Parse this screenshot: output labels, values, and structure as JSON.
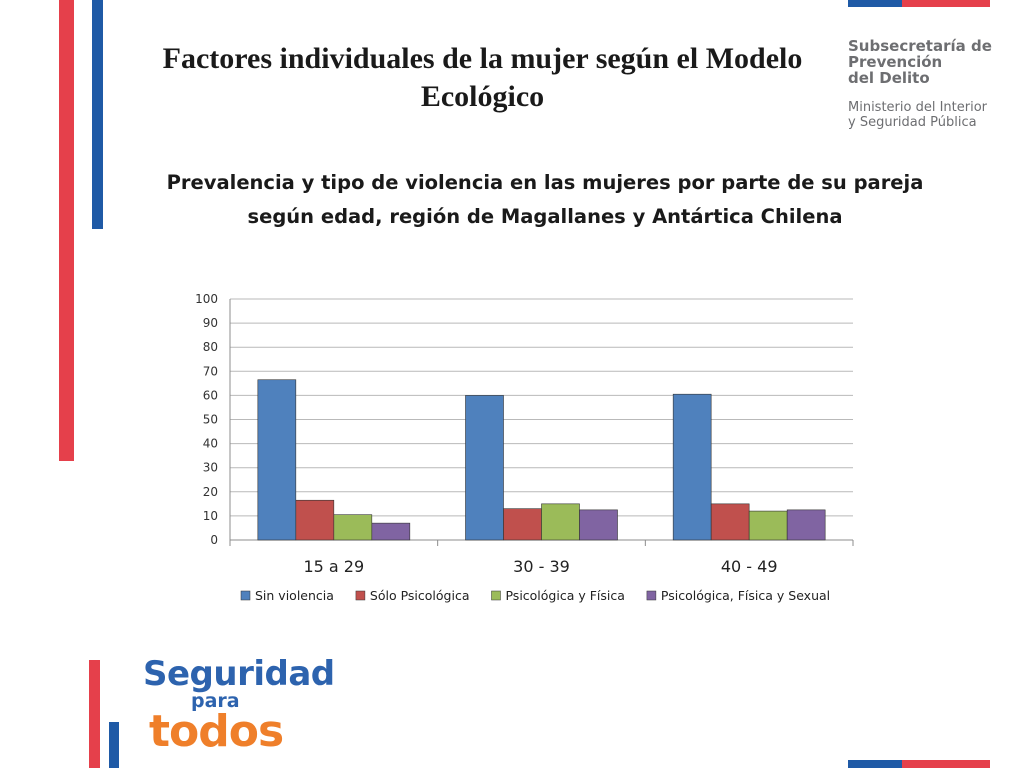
{
  "slide": {
    "title": "Factores individuales de la mujer según el Modelo Ecológico",
    "org_line1": "Subsecretaría de",
    "org_line2": "Prevención",
    "org_line3": "del Delito",
    "org_line4": "Ministerio del Interior",
    "org_line5": "y Seguridad Pública",
    "brand_word1": "Seguridad",
    "brand_word2": "para",
    "brand_word3": "todos"
  },
  "colors": {
    "accent_red": "#e5404b",
    "accent_blue": "#1f5aa6",
    "series": [
      "#4f81bd",
      "#c0504d",
      "#9bbb59",
      "#8064a2"
    ]
  },
  "chart_data": {
    "type": "bar",
    "title": "Prevalencia y tipo de violencia en las mujeres por parte de su pareja según edad, región de Magallanes y Antártica Chilena",
    "categories": [
      "15 a 29",
      "30 - 39",
      "40 - 49"
    ],
    "series": [
      {
        "name": "Sin violencia",
        "values": [
          66.5,
          60,
          60.5
        ]
      },
      {
        "name": "Sólo Psicológica",
        "values": [
          16.5,
          13,
          15
        ]
      },
      {
        "name": "Psicológica y Física",
        "values": [
          10.5,
          15,
          12
        ]
      },
      {
        "name": "Psicológica, Física y Sexual",
        "values": [
          7,
          12.5,
          12.5
        ]
      }
    ],
    "ylim": [
      0,
      100
    ],
    "yticks": [
      0,
      10,
      20,
      30,
      40,
      50,
      60,
      70,
      80,
      90,
      100
    ],
    "grid": true,
    "legend": "bottom",
    "xlabel": "",
    "ylabel": ""
  }
}
